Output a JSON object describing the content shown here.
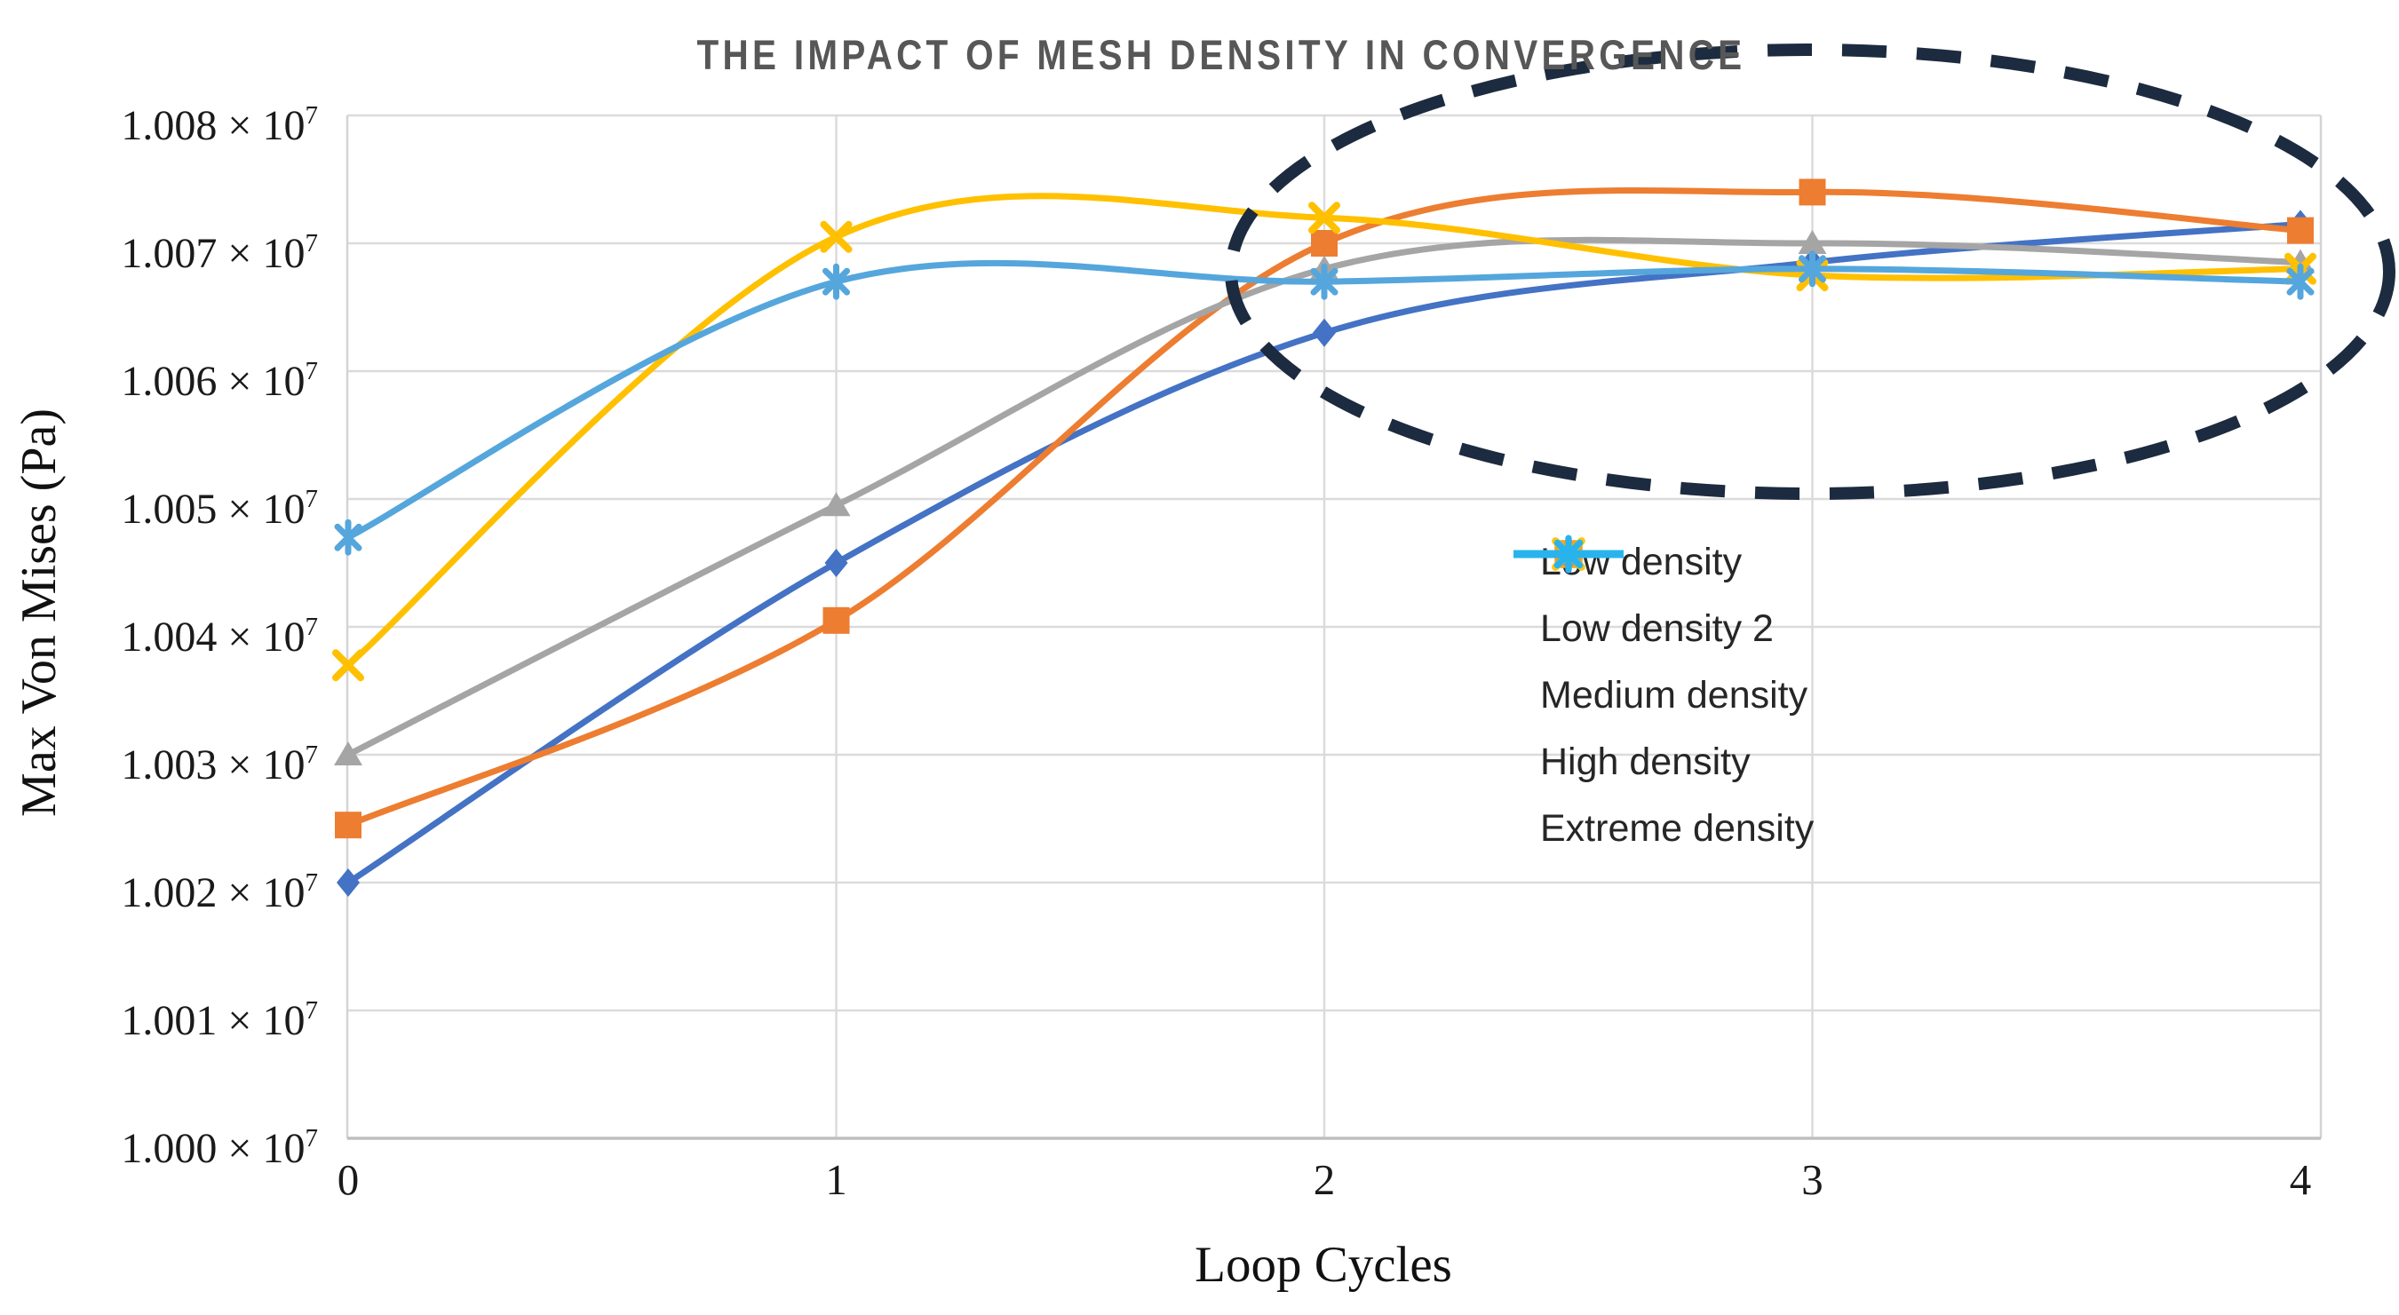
{
  "title": {
    "text": "THE IMPACT OF MESH DENSITY IN CONVERGENCE",
    "color": "#575757"
  },
  "yaxis": {
    "title": "Max Von Mises (Pa)",
    "ticks": [
      {
        "base": "1.008 × 10",
        "exp": "7"
      },
      {
        "base": "1.007 × 10",
        "exp": "7"
      },
      {
        "base": "1.006 × 10",
        "exp": "7"
      },
      {
        "base": "1.005 × 10",
        "exp": "7"
      },
      {
        "base": "1.004 × 10",
        "exp": "7"
      },
      {
        "base": "1.003 × 10",
        "exp": "7"
      },
      {
        "base": "1.002 × 10",
        "exp": "7"
      },
      {
        "base": "1.001 × 10",
        "exp": "7"
      },
      {
        "base": "1.000 × 10",
        "exp": "7"
      }
    ]
  },
  "xaxis": {
    "title": "Loop Cycles",
    "labels": [
      "0",
      "1",
      "2",
      "3",
      "4"
    ]
  },
  "chart_data": {
    "type": "line",
    "title": "THE IMPACT OF MESH DENSITY IN CONVERGENCE",
    "xlabel": "Loop Cycles",
    "ylabel": "Max Von Mises (Pa)",
    "x": [
      0,
      1,
      2,
      3,
      4
    ],
    "ylim": [
      10000000,
      10080000
    ],
    "ytick_step": 10000,
    "grid": true,
    "line_style": "smooth",
    "legend_position": "middle-right",
    "series": [
      {
        "name": "Low density",
        "marker": "diamond",
        "color": "#4472C4",
        "legend_color": "#2430DC",
        "values": [
          10020000,
          10045000,
          10063000,
          10068500,
          10071500
        ]
      },
      {
        "name": "Low density 2",
        "marker": "square",
        "color": "#ED7D31",
        "legend_color": "#FF9E1B",
        "values": [
          10024500,
          10040500,
          10070000,
          10074000,
          10071000
        ]
      },
      {
        "name": "Medium density",
        "marker": "triangle",
        "color": "#A5A5A5",
        "legend_color": "#8F8F8F",
        "values": [
          10030000,
          10049500,
          10068000,
          10070000,
          10068500
        ]
      },
      {
        "name": "High density",
        "marker": "x",
        "color": "#FFC000",
        "legend_color": "#FFC40D",
        "values": [
          10037000,
          10070500,
          10072000,
          10067500,
          10068000
        ]
      },
      {
        "name": "Extreme density",
        "marker": "star",
        "color": "#55A6DC",
        "legend_color": "#29B3EC",
        "values": [
          10047000,
          10067000,
          10067000,
          10068000,
          10067000
        ]
      }
    ],
    "annotation": {
      "type": "dashed-ellipse",
      "meaning": "converged region highlight",
      "color": "#1C2B3F",
      "center_x_cycles": 3.0,
      "spans_cycles": [
        1.8,
        4.2
      ],
      "spans_values": [
        10060000,
        10079500
      ]
    },
    "colors": {
      "grid": "#DBDBDB",
      "axis_line": "#BFBFBF",
      "tick_text": "#1a1a1a"
    }
  }
}
